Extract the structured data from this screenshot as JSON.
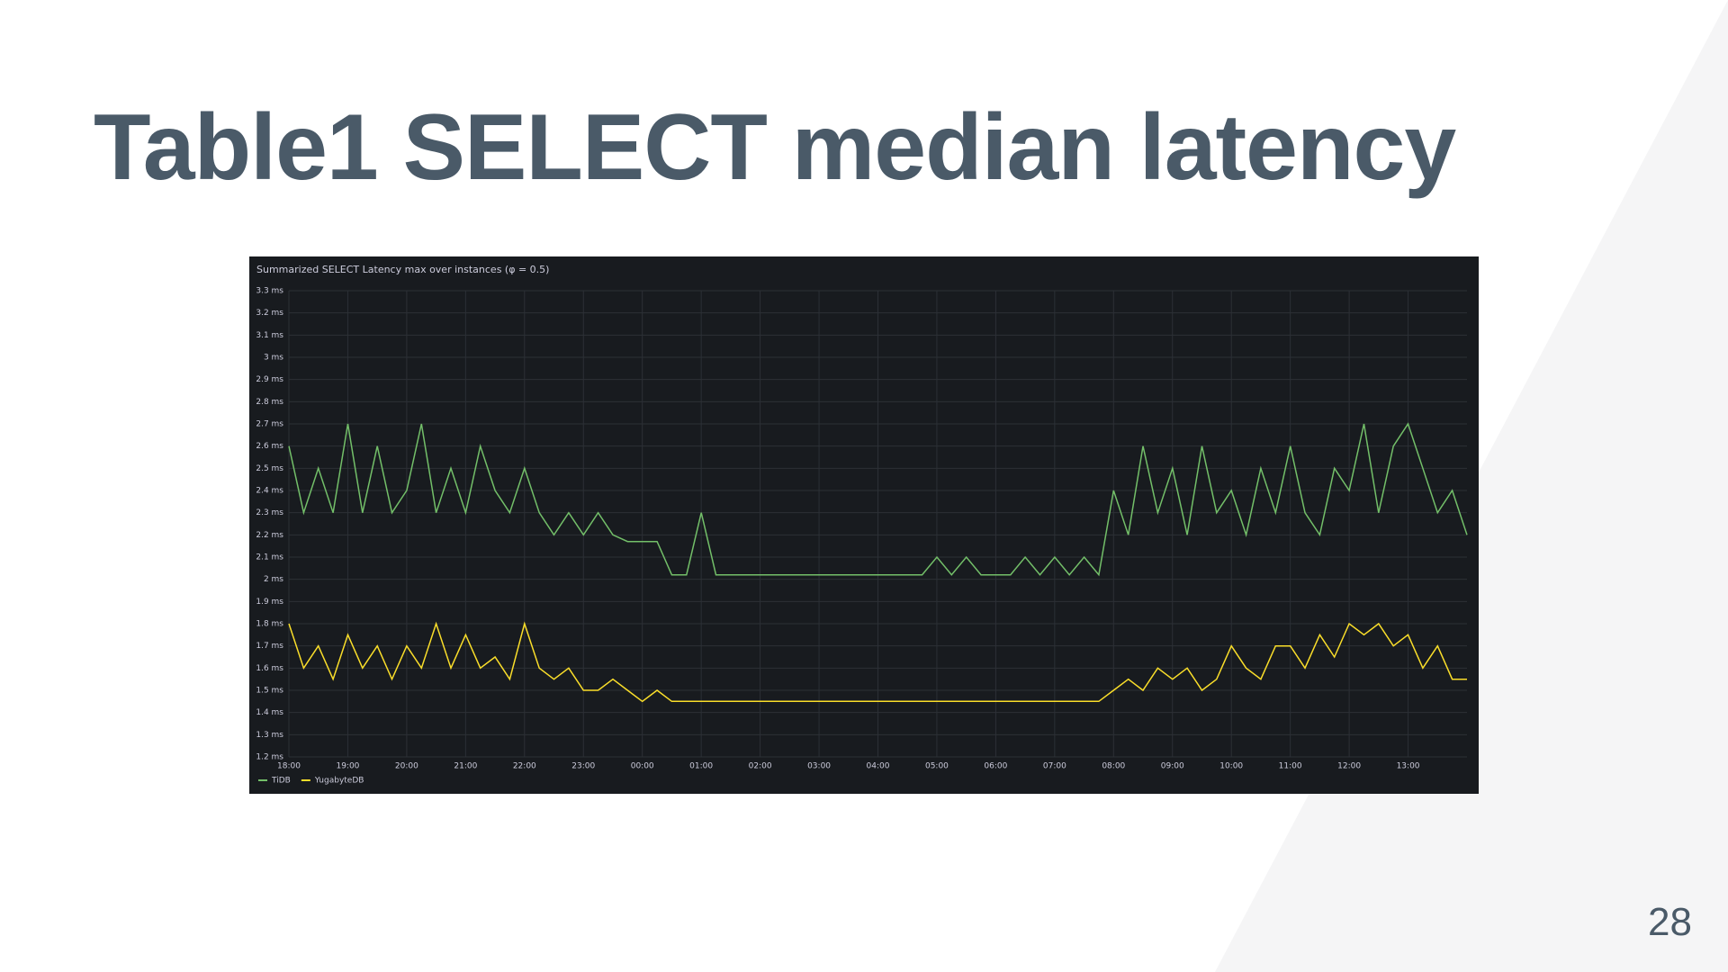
{
  "slide_title": "Table1 SELECT median latency",
  "page_number": "28",
  "chart_data": {
    "type": "line",
    "title": "Summarized SELECT Latency max over instances (φ = 0.5)",
    "categories": [
      "18:00",
      null,
      null,
      null,
      "19:00",
      null,
      null,
      null,
      "20:00",
      null,
      null,
      null,
      "21:00",
      null,
      null,
      null,
      "22:00",
      null,
      null,
      null,
      "23:00",
      null,
      null,
      null,
      "00:00",
      null,
      null,
      null,
      "01:00",
      null,
      null,
      null,
      "02:00",
      null,
      null,
      null,
      "03:00",
      null,
      null,
      null,
      "04:00",
      null,
      null,
      null,
      "05:00",
      null,
      null,
      null,
      "06:00",
      null,
      null,
      null,
      "07:00",
      null,
      null,
      null,
      "08:00",
      null,
      null,
      null,
      "09:00",
      null,
      null,
      null,
      "10:00",
      null,
      null,
      null,
      "11:00",
      null,
      null,
      null,
      "12:00",
      null,
      null,
      null,
      "13:00",
      null,
      null,
      null,
      null
    ],
    "series": [
      {
        "name": "TiDB",
        "color": "#73bf69",
        "values": [
          2.6,
          2.3,
          2.5,
          2.3,
          2.7,
          2.3,
          2.6,
          2.3,
          2.4,
          2.7,
          2.3,
          2.5,
          2.3,
          2.6,
          2.4,
          2.3,
          2.5,
          2.3,
          2.2,
          2.3,
          2.2,
          2.3,
          2.2,
          2.17,
          2.17,
          2.17,
          2.02,
          2.02,
          2.3,
          2.02,
          2.02,
          2.02,
          2.02,
          2.02,
          2.02,
          2.02,
          2.02,
          2.02,
          2.02,
          2.02,
          2.02,
          2.02,
          2.02,
          2.02,
          2.1,
          2.02,
          2.1,
          2.02,
          2.02,
          2.02,
          2.1,
          2.02,
          2.1,
          2.02,
          2.1,
          2.02,
          2.4,
          2.2,
          2.6,
          2.3,
          2.5,
          2.2,
          2.6,
          2.3,
          2.4,
          2.2,
          2.5,
          2.3,
          2.6,
          2.3,
          2.2,
          2.5,
          2.4,
          2.7,
          2.3,
          2.6,
          2.7,
          2.5,
          2.3,
          2.4,
          2.2
        ]
      },
      {
        "name": "YugabyteDB",
        "color": "#fade2a",
        "values": [
          1.8,
          1.6,
          1.7,
          1.55,
          1.75,
          1.6,
          1.7,
          1.55,
          1.7,
          1.6,
          1.8,
          1.6,
          1.75,
          1.6,
          1.65,
          1.55,
          1.8,
          1.6,
          1.55,
          1.6,
          1.5,
          1.5,
          1.55,
          1.5,
          1.45,
          1.5,
          1.45,
          1.45,
          1.45,
          1.45,
          1.45,
          1.45,
          1.45,
          1.45,
          1.45,
          1.45,
          1.45,
          1.45,
          1.45,
          1.45,
          1.45,
          1.45,
          1.45,
          1.45,
          1.45,
          1.45,
          1.45,
          1.45,
          1.45,
          1.45,
          1.45,
          1.45,
          1.45,
          1.45,
          1.45,
          1.45,
          1.5,
          1.55,
          1.5,
          1.6,
          1.55,
          1.6,
          1.5,
          1.55,
          1.7,
          1.6,
          1.55,
          1.7,
          1.7,
          1.6,
          1.75,
          1.65,
          1.8,
          1.75,
          1.8,
          1.7,
          1.75,
          1.6,
          1.7,
          1.55,
          1.55
        ]
      }
    ],
    "ylim": [
      1.2,
      3.3
    ],
    "yticks": [
      {
        "value": 1.2,
        "label": "1.2 ms"
      },
      {
        "value": 1.3,
        "label": "1.3 ms"
      },
      {
        "value": 1.4,
        "label": "1.4 ms"
      },
      {
        "value": 1.5,
        "label": "1.5 ms"
      },
      {
        "value": 1.6,
        "label": "1.6 ms"
      },
      {
        "value": 1.7,
        "label": "1.7 ms"
      },
      {
        "value": 1.8,
        "label": "1.8 ms"
      },
      {
        "value": 1.9,
        "label": "1.9 ms"
      },
      {
        "value": 2,
        "label": "2 ms"
      },
      {
        "value": 2.1,
        "label": "2.1 ms"
      },
      {
        "value": 2.2,
        "label": "2.2 ms"
      },
      {
        "value": 2.3,
        "label": "2.3 ms"
      },
      {
        "value": 2.4,
        "label": "2.4 ms"
      },
      {
        "value": 2.5,
        "label": "2.5 ms"
      },
      {
        "value": 2.6,
        "label": "2.6 ms"
      },
      {
        "value": 2.7,
        "label": "2.7 ms"
      },
      {
        "value": 2.8,
        "label": "2.8 ms"
      },
      {
        "value": 2.9,
        "label": "2.9 ms"
      },
      {
        "value": 3,
        "label": "3 ms"
      },
      {
        "value": 3.1,
        "label": "3.1 ms"
      },
      {
        "value": 3.2,
        "label": "3.2 ms"
      },
      {
        "value": 3.3,
        "label": "3.3 ms"
      }
    ],
    "grid": true,
    "legend": "bottom-left"
  }
}
